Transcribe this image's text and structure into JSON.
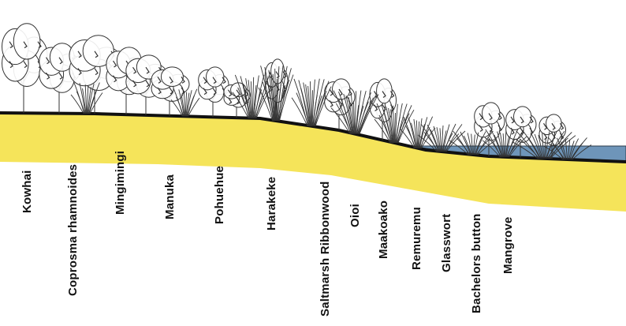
{
  "colors": {
    "soil": "#f5e45a",
    "water": "#6e95b9",
    "ground_line": "#111111",
    "vegetation_stroke": "#333333",
    "vegetation_fill": "#ffffff",
    "label": "#111111"
  },
  "icons": {
    "trees": "tree-outline-icon",
    "grasses": "grass-tuft-icon",
    "water": "water-icon"
  },
  "species": [
    "Kowhai",
    "Coprosma rhamnoides",
    "Mingimingi",
    "Manuka",
    "Pohuehue",
    "Harakeke",
    "Saltmarsh Ribbonwood",
    "Oioi",
    "Maakoako",
    "Remuremu",
    "Glasswort",
    "Bachelors button",
    "Mangrove"
  ]
}
